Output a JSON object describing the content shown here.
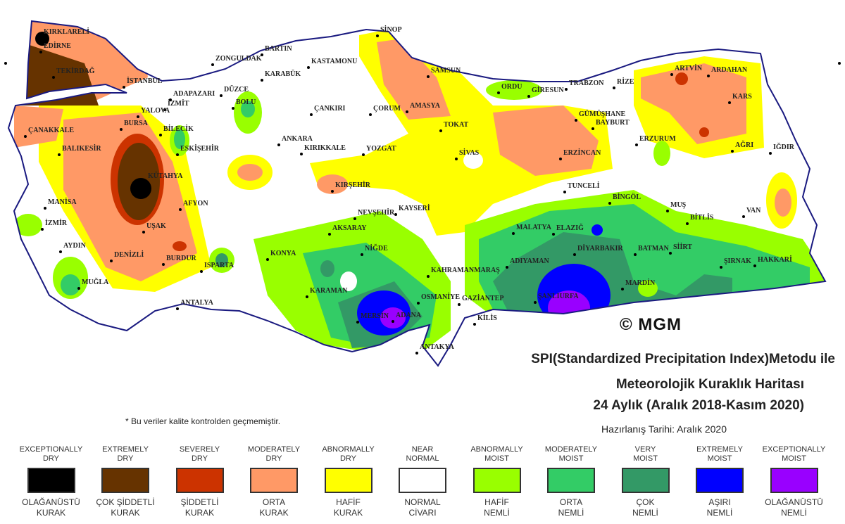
{
  "title": {
    "line1": "SPI(Standardized Precipitation Index)Metodu ile",
    "line2": "Meteorolojik Kuraklık Haritası",
    "line3": "24 Aylık (Aralık 2018-Kasım 2020)",
    "line4": "Hazırlanış Tarihi: Aralık 2020"
  },
  "note": "* Bu veriler kalite kontrolden geçmemiştir.",
  "copyright": "© MGM",
  "legend": [
    {
      "en1": "EXCEPTIONALLY",
      "en2": "DRY",
      "tr1": "OLAĞANÜSTÜ",
      "tr2": "KURAK",
      "color": "#000000"
    },
    {
      "en1": "EXTREMELY",
      "en2": "DRY",
      "tr1": "ÇOK ŞİDDETLİ",
      "tr2": "KURAK",
      "color": "#663300"
    },
    {
      "en1": "SEVERELY",
      "en2": "DRY",
      "tr1": "ŞİDDETLİ",
      "tr2": "KURAK",
      "color": "#cc3300"
    },
    {
      "en1": "MODERATELY",
      "en2": "DRY",
      "tr1": "ORTA",
      "tr2": "KURAK",
      "color": "#ff9966"
    },
    {
      "en1": "ABNORMALLY",
      "en2": "DRY",
      "tr1": "HAFİF",
      "tr2": "KURAK",
      "color": "#ffff00"
    },
    {
      "en1": "NEAR",
      "en2": "NORMAL",
      "tr1": "NORMAL",
      "tr2": "CİVARI",
      "color": "#ffffff"
    },
    {
      "en1": "ABNORMALLY",
      "en2": "MOIST",
      "tr1": "HAFİF",
      "tr2": "NEMLİ",
      "color": "#99ff00"
    },
    {
      "en1": "MODERATELY",
      "en2": "MOIST",
      "tr1": "ORTA",
      "tr2": "NEMLİ",
      "color": "#33cc66"
    },
    {
      "en1": "VERY",
      "en2": "MOIST",
      "tr1": "ÇOK",
      "tr2": "NEMLİ",
      "color": "#339966"
    },
    {
      "en1": "EXTREMELY",
      "en2": "MOIST",
      "tr1": "AŞIRI",
      "tr2": "NEMLİ",
      "color": "#0000ff"
    },
    {
      "en1": "EXCEPTIONALLY",
      "en2": "MOIST",
      "tr1": "OLAĞANÜSTÜ",
      "tr2": "NEMLİ",
      "color": "#9900ff"
    }
  ],
  "cities": [
    "KIRKLARELİ",
    "EDİRNE",
    "TEKİRDAĞ",
    "İSTANBUL",
    "İZMİT",
    "ADAPAZARI",
    "YALOVA",
    "BURSA",
    "BİLECİK",
    "ÇANAKKALE",
    "BALIKESİR",
    "ESKİŞEHİR",
    "KÜTAHYA",
    "MANİSA",
    "İZMİR",
    "UŞAK",
    "AFYON",
    "AYDIN",
    "DENİZLİ",
    "MUĞLA",
    "BURDUR",
    "ISPARTA",
    "ANTALYA",
    "DÜZCE",
    "BOLU",
    "BARTIN",
    "ZONGULDAK",
    "KARABÜK",
    "KASTAMONU",
    "SİNOP",
    "SAMSUN",
    "ÇANKIRI",
    "ÇORUM",
    "AMASYA",
    "TOKAT",
    "ANKARA",
    "KIRIKKALE",
    "YOZGAT",
    "SİVAS",
    "KIRŞEHİR",
    "NEVŞEHİR",
    "KAYSERİ",
    "AKSARAY",
    "NİĞDE",
    "KONYA",
    "KARAMAN",
    "MERSİN",
    "ADANA",
    "OSMANİYE",
    "ANTAKYA",
    "KİLİS",
    "GAZİANTEP",
    "KAHRAMANMARAŞ",
    "ADIYAMAN",
    "ŞANLIURFA",
    "MALATYA",
    "ELAZIĞ",
    "TUNCELİ",
    "BİNGÖL",
    "MUŞ",
    "BİTLİS",
    "VAN",
    "SİİRT",
    "BATMAN",
    "DİYARBAKIR",
    "MARDİN",
    "ŞIRNAK",
    "HAKKARİ",
    "ORDU",
    "GİRESUN",
    "TRABZON",
    "RİZE",
    "ARTVİN",
    "ARDAHAN",
    "KARS",
    "AĞRI",
    "IĞDIR",
    "ERZURUM",
    "BAYBURT",
    "GÜMÜŞHANE",
    "ERZİNCAN"
  ]
}
